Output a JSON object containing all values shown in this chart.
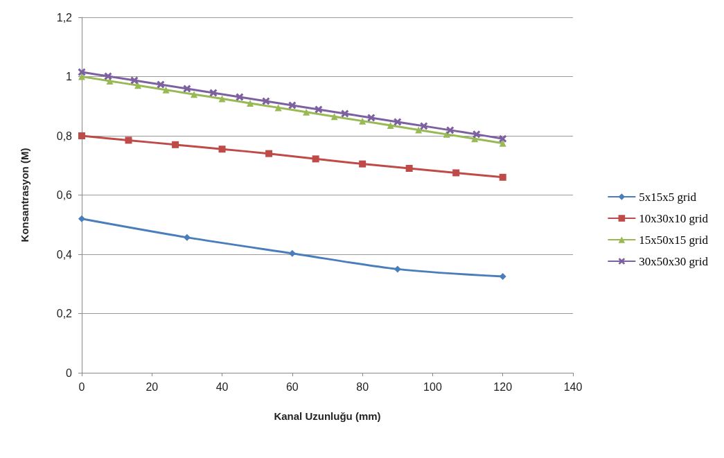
{
  "chart_data": {
    "type": "line",
    "xlabel": "Kanal Uzunluğu (mm)",
    "ylabel": "Konsantrasyon (M)",
    "xlim": [
      0,
      140
    ],
    "xticks": [
      0,
      20,
      40,
      60,
      80,
      100,
      120,
      140
    ],
    "ylim": [
      0,
      1.2
    ],
    "yticks": [
      0,
      {
        "value": 0.2,
        "label": "0,2"
      },
      {
        "value": 0.4,
        "label": "0,4"
      },
      {
        "value": 0.6,
        "label": "0,6"
      },
      {
        "value": 0.8,
        "label": "0,8"
      },
      1,
      {
        "value": 1.2,
        "label": "1,2"
      }
    ],
    "grid": "y",
    "legend": "right",
    "series": [
      {
        "name": "5x15x5 grid",
        "color": "#4a7ebb",
        "marker": "diamond",
        "x": [
          0,
          30,
          60,
          90,
          120
        ],
        "values": [
          0.52,
          0.457,
          0.403,
          0.35,
          0.325
        ]
      },
      {
        "name": "10x30x10 grid",
        "color": "#be4b48",
        "marker": "square",
        "x": [
          0,
          13.33,
          26.67,
          40,
          53.33,
          66.67,
          80,
          93.33,
          106.67,
          120
        ],
        "values": [
          0.8,
          0.785,
          0.77,
          0.755,
          0.74,
          0.722,
          0.705,
          0.69,
          0.675,
          0.66
        ]
      },
      {
        "name": "15x50x15 grid",
        "color": "#98b954",
        "marker": "triangle",
        "x": [
          0,
          8,
          16,
          24,
          32,
          40,
          48,
          56,
          64,
          72,
          80,
          88,
          96,
          104,
          112,
          120
        ],
        "values": [
          1.0,
          0.985,
          0.97,
          0.955,
          0.94,
          0.925,
          0.91,
          0.895,
          0.88,
          0.865,
          0.85,
          0.835,
          0.82,
          0.805,
          0.79,
          0.775
        ]
      },
      {
        "name": "30x50x30 grid",
        "color": "#7d60a0",
        "marker": "cross",
        "x": [
          0,
          7.5,
          15,
          22.5,
          30,
          37.5,
          45,
          52.5,
          60,
          67.5,
          75,
          82.5,
          90,
          97.5,
          105,
          112.5,
          120
        ],
        "values": [
          1.015,
          1.001,
          0.987,
          0.973,
          0.959,
          0.945,
          0.931,
          0.917,
          0.903,
          0.889,
          0.875,
          0.861,
          0.847,
          0.833,
          0.819,
          0.805,
          0.79
        ]
      }
    ]
  }
}
